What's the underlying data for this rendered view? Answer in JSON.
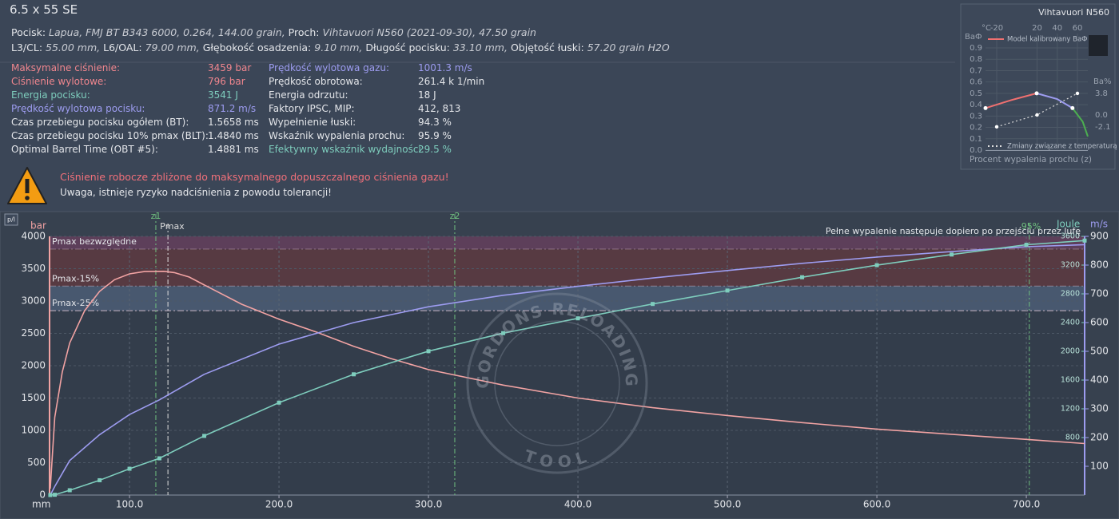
{
  "header": {
    "title": "6.5 x 55 SE",
    "lines": [
      [
        {
          "label": "Pocisk:",
          "value": "Lapua, FMJ BT B343 6000, 0.264, 144.00 grain,"
        },
        {
          "label": "Proch:",
          "value": "Vihtavuori N560 (2021-09-30), 47.50 grain"
        }
      ],
      [
        {
          "label": "L3/CL:",
          "value": "55.00 mm,"
        },
        {
          "label": "L6/OAL:",
          "value": "79.00 mm,"
        },
        {
          "label": "Głębokość osadzenia:",
          "value": "9.10 mm,"
        },
        {
          "label": "Długość pocisku:",
          "value": "33.10 mm,"
        },
        {
          "label": "Objętość łuski:",
          "value": "57.20 grain H2O"
        }
      ]
    ]
  },
  "stats": {
    "left": [
      {
        "name": "Maksymalne ciśnienie:",
        "value": "3459 bar",
        "color": "#f0868e"
      },
      {
        "name": "Ciśnienie wylotowe:",
        "value": "796 bar",
        "color": "#f0868e"
      },
      {
        "name": "Energia pocisku:",
        "value": "3541 J",
        "color": "#7ecdbd"
      },
      {
        "name": "Prędkość wylotowa pocisku:",
        "value": "871.2 m/s",
        "color": "#9d9cf0"
      },
      {
        "name": "Czas przebiegu pocisku ogółem (BT):",
        "value": "1.5658 ms",
        "color": "#e4e6ea"
      },
      {
        "name": "Czas przebiegu pocisku 10% pmax (BLT):",
        "value": "1.4840 ms",
        "color": "#e4e6ea"
      },
      {
        "name": "Optimal Barrel Time (OBT #5):",
        "value": "1.4881 ms",
        "color": "#e4e6ea"
      }
    ],
    "right": [
      {
        "name": "Prędkość wylotowa gazu:",
        "value": "1001.3 m/s",
        "color": "#9d9cf0"
      },
      {
        "name": "Prędkość obrotowa:",
        "value": "261.4 k 1/min",
        "color": "#e4e6ea"
      },
      {
        "name": "Energia odrzutu:",
        "value": "18 J",
        "color": "#e4e6ea"
      },
      {
        "name": "Faktory IPSC, MIP:",
        "value": "412, 813",
        "color": "#e4e6ea"
      },
      {
        "name": "Wypełnienie łuski:",
        "value": "94.3 %",
        "color": "#e4e6ea"
      },
      {
        "name": "Wskaźnik wypalenia prochu:",
        "value": "95.9 %",
        "color": "#e4e6ea"
      },
      {
        "name": "Efektywny wskaźnik wydajności:",
        "value": "29.5 %",
        "color": "#7ecdbd"
      }
    ]
  },
  "warning": {
    "title": "Ciśnienie robocze zbliżone do maksymalnego dopuszczalnego ciśnienia gazu!",
    "text": "Uwaga, istnieje ryzyko nadciśnienia z powodu tolerancji!"
  },
  "watermark": {
    "top": "GORDONS RELOADING",
    "bottom": "TOOL"
  },
  "chart_data": {
    "type": "line",
    "button": "p/l",
    "xlabel": "mm",
    "ylabel": "bar",
    "y2label": "m/s",
    "y3label": "Joule",
    "xlim": [
      46.5,
      739
    ],
    "xticks": [
      {
        "value": 100,
        "label": "100.0"
      },
      {
        "value": 200,
        "label": "200.0"
      },
      {
        "value": 300,
        "label": "300.0"
      },
      {
        "value": 400,
        "label": "400.0"
      },
      {
        "value": 500,
        "label": "500.0"
      },
      {
        "value": 600,
        "label": "600.0"
      },
      {
        "value": 700,
        "label": "700.0"
      }
    ],
    "ylim": [
      0,
      4000
    ],
    "yticks": [
      0,
      500,
      1000,
      1500,
      2000,
      2500,
      3000,
      3500,
      4000
    ],
    "y2lim": [
      0,
      900
    ],
    "y2ticks": [
      100,
      200,
      300,
      400,
      500,
      600,
      700,
      800,
      900
    ],
    "y3lim": [
      0,
      3600
    ],
    "y3ticks": [
      800,
      1200,
      1600,
      2000,
      2400,
      2800,
      3200,
      3600
    ],
    "grid": true,
    "series": [
      {
        "color": "#f2a3a3",
        "x": [
          47,
          50,
          55,
          60,
          70,
          80,
          90,
          100,
          110,
          123,
          130,
          140,
          150,
          175,
          200,
          225,
          250,
          275,
          300,
          350,
          400,
          450,
          500,
          550,
          600,
          650,
          700,
          739
        ],
        "values": [
          100,
          1200,
          1900,
          2350,
          2850,
          3150,
          3330,
          3420,
          3455,
          3459,
          3440,
          3370,
          3250,
          2950,
          2720,
          2520,
          2300,
          2110,
          1940,
          1700,
          1500,
          1350,
          1230,
          1120,
          1020,
          940,
          860,
          796
        ]
      },
      {
        "color": "#9d9cf0",
        "axis": "y2",
        "x": [
          47,
          50,
          60,
          80,
          100,
          120,
          150,
          200,
          250,
          300,
          350,
          400,
          450,
          500,
          550,
          600,
          650,
          700,
          739
        ],
        "values": [
          0,
          30,
          120,
          210,
          280,
          331,
          420,
          525,
          600,
          655,
          695,
          726,
          755,
          781,
          806,
          828,
          847,
          864,
          871.2
        ]
      },
      {
        "color": "#7ecdbd",
        "axis": "y3",
        "markers": "square",
        "x": [
          47,
          50,
          60,
          80,
          100,
          120,
          150,
          200,
          250,
          300,
          350,
          400,
          450,
          500,
          550,
          600,
          650,
          700,
          739
        ],
        "values": [
          0,
          4,
          67,
          206,
          366,
          511,
          823,
          1286,
          1680,
          2002,
          2253,
          2459,
          2659,
          2846,
          3031,
          3199,
          3347,
          3483,
          3541
        ]
      }
    ],
    "bands": [
      {
        "label": "Pmax bezwzględne",
        "from": 3800,
        "to": 4000,
        "color": "#5d3f5a"
      },
      {
        "label": "Pmax-15%",
        "from": 3230,
        "to": 3800,
        "color": "#573a42"
      },
      {
        "label": "Pmax-25%",
        "from": 2850,
        "to": 3230,
        "color": "#48586f"
      }
    ],
    "vlines": [
      {
        "label": "z1",
        "x": 117.6,
        "color": "#6fbf7f"
      },
      {
        "label": "Pmax",
        "x": 125.7,
        "color": "#dddddd"
      },
      {
        "label": "z2",
        "x": 317.6,
        "color": "#6fbf7f"
      },
      {
        "label": "95%",
        "x": 702,
        "color": "#6fbf7f"
      }
    ],
    "annotation": "Pełne wypalenie następuje dopiero po przejściu przez lufę"
  },
  "mini_chart": {
    "type": "line",
    "title": "Vihtavuori N560",
    "ylabel": "BaФ",
    "xlabel": "Procent wypalenia prochu (z)",
    "xlim": [
      0,
      1
    ],
    "ylim": [
      0,
      0.9
    ],
    "yticks": [
      {
        "value": 0,
        "label": "0.0"
      },
      0.1,
      0.2,
      0.3,
      0.4,
      0.5,
      0.6,
      0.7,
      0.8,
      0.9
    ],
    "templabel": "°C",
    "templim": [
      -20,
      60
    ],
    "tempticks": [
      -20,
      20,
      40,
      60
    ],
    "y2label": "Ba%",
    "y2lim": [
      -6.2,
      11.8
    ],
    "y2ticks": [
      3.8,
      {
        "value": 0,
        "label": "0.0"
      },
      -2.1
    ],
    "series": [
      {
        "name": "Model kalibrowany  BaФ",
        "color": "#f07070",
        "x": [
          0,
          0.25,
          0.5
        ],
        "values": [
          0.37,
          0.44,
          0.5
        ]
      },
      {
        "color": "#9d9cf0",
        "x": [
          0.5,
          0.7,
          0.85
        ],
        "values": [
          0.5,
          0.45,
          0.37
        ]
      },
      {
        "color": "#4caf50",
        "x": [
          0.85,
          0.95,
          1
        ],
        "values": [
          0.37,
          0.25,
          0.12
        ]
      },
      {
        "name": "Zmiany związane z temperaturą",
        "color": "#dddddd",
        "axis": "y2",
        "xaxis": "temp",
        "dash": true,
        "x": [
          -20,
          20,
          60
        ],
        "values": [
          -2.1,
          0,
          3.8
        ]
      }
    ]
  }
}
